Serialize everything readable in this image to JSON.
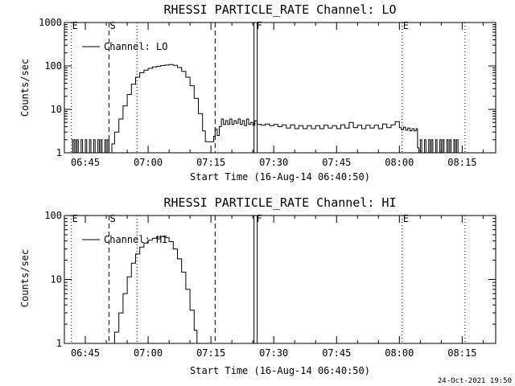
{
  "footer": {
    "timestamp": "24-Oct-2021 19:50"
  },
  "chart_data": [
    {
      "type": "line",
      "title": "RHESSI PARTICLE_RATE Channel: LO",
      "xlabel": "Start Time (16-Aug-14 06:40:50)",
      "ylabel": "Counts/sec",
      "yscale": "log",
      "ylim": [
        1,
        1000
      ],
      "yticks": [
        "1",
        "10",
        "100",
        "1000"
      ],
      "xticks": [
        "06:45",
        "07:00",
        "07:15",
        "07:30",
        "07:45",
        "08:00",
        "08:15"
      ],
      "legend": {
        "label": "Channel: LO",
        "placement": "top-left"
      },
      "markers": [
        {
          "label": "E",
          "time": "06:41:40",
          "style": "dotted"
        },
        {
          "label": "S",
          "time": "06:50:40",
          "style": "dashed"
        },
        {
          "label": "",
          "time": "06:57:20",
          "style": "dotted"
        },
        {
          "label": "",
          "time": "07:16:00",
          "style": "dashed"
        },
        {
          "label": "F",
          "time": "07:25:40",
          "style": "double"
        },
        {
          "label": "E",
          "time": "08:00:40",
          "style": "dotted"
        },
        {
          "label": "",
          "time": "08:15:40",
          "style": "dotted"
        }
      ],
      "series": [
        {
          "name": "Channel: LO",
          "points": [
            [
              "06:41:40",
              2
            ],
            [
              "06:42:00",
              1
            ],
            [
              "06:42:20",
              2
            ],
            [
              "06:42:40",
              1
            ],
            [
              "06:43:00",
              2
            ],
            [
              "06:43:20",
              1
            ],
            [
              "06:43:40",
              1
            ],
            [
              "06:44:00",
              2
            ],
            [
              "06:44:20",
              1
            ],
            [
              "06:44:40",
              1
            ],
            [
              "06:45:00",
              2
            ],
            [
              "06:45:20",
              1
            ],
            [
              "06:45:40",
              1
            ],
            [
              "06:46:00",
              2
            ],
            [
              "06:46:20",
              1
            ],
            [
              "06:46:40",
              1
            ],
            [
              "06:47:00",
              2
            ],
            [
              "06:47:20",
              1
            ],
            [
              "06:47:40",
              1
            ],
            [
              "06:48:00",
              2
            ],
            [
              "06:48:20",
              1
            ],
            [
              "06:48:40",
              2
            ],
            [
              "06:49:00",
              1
            ],
            [
              "06:49:20",
              1
            ],
            [
              "06:49:40",
              2
            ],
            [
              "06:50:00",
              1
            ],
            [
              "06:50:20",
              2
            ],
            [
              "06:50:40",
              1
            ],
            [
              "06:51:00",
              1
            ],
            [
              "06:51:20",
              1.6
            ],
            [
              "06:52:00",
              3
            ],
            [
              "06:53:00",
              6
            ],
            [
              "06:54:00",
              12
            ],
            [
              "06:55:00",
              22
            ],
            [
              "06:56:00",
              38
            ],
            [
              "06:57:00",
              55
            ],
            [
              "06:58:00",
              70
            ],
            [
              "06:59:00",
              80
            ],
            [
              "07:00:00",
              88
            ],
            [
              "07:01:00",
              95
            ],
            [
              "07:02:00",
              98
            ],
            [
              "07:03:00",
              102
            ],
            [
              "07:04:00",
              105
            ],
            [
              "07:05:00",
              108
            ],
            [
              "07:06:00",
              103
            ],
            [
              "07:07:00",
              92
            ],
            [
              "07:08:00",
              75
            ],
            [
              "07:09:00",
              55
            ],
            [
              "07:10:00",
              35
            ],
            [
              "07:11:00",
              18
            ],
            [
              "07:12:00",
              8
            ],
            [
              "07:13:00",
              3.2
            ],
            [
              "07:13:40",
              1.8
            ],
            [
              "07:14:20",
              1.8
            ],
            [
              "07:15:00",
              1.8
            ],
            [
              "07:15:40",
              2.4
            ],
            [
              "07:16:00",
              3.5
            ],
            [
              "07:16:30",
              2.5
            ],
            [
              "07:17:00",
              4
            ],
            [
              "07:17:30",
              6
            ],
            [
              "07:18:00",
              4.5
            ],
            [
              "07:18:30",
              5.5
            ],
            [
              "07:19:00",
              4.5
            ],
            [
              "07:19:30",
              6
            ],
            [
              "07:20:00",
              4.5
            ],
            [
              "07:20:30",
              5.5
            ],
            [
              "07:21:00",
              4.8
            ],
            [
              "07:21:30",
              6
            ],
            [
              "07:22:00",
              4.5
            ],
            [
              "07:22:30",
              5.5
            ],
            [
              "07:23:00",
              4.2
            ],
            [
              "07:23:30",
              6
            ],
            [
              "07:24:00",
              4.5
            ],
            [
              "07:24:30",
              5
            ],
            [
              "07:25:00",
              4.3
            ],
            [
              "07:25:30",
              5.5
            ],
            [
              "07:26:00",
              4.5
            ],
            [
              "07:27:00",
              4.3
            ],
            [
              "07:28:00",
              4.6
            ],
            [
              "07:29:00",
              4.2
            ],
            [
              "07:30:00",
              4.5
            ],
            [
              "07:31:00",
              4
            ],
            [
              "07:32:00",
              4.4
            ],
            [
              "07:33:00",
              3.7
            ],
            [
              "07:34:00",
              4.4
            ],
            [
              "07:35:00",
              3.6
            ],
            [
              "07:36:00",
              4.2
            ],
            [
              "07:37:00",
              3.6
            ],
            [
              "07:38:00",
              4.2
            ],
            [
              "07:39:00",
              3.6
            ],
            [
              "07:40:00",
              4.2
            ],
            [
              "07:41:00",
              3.6
            ],
            [
              "07:42:00",
              4.3
            ],
            [
              "07:43:00",
              3.7
            ],
            [
              "07:44:00",
              4.2
            ],
            [
              "07:45:00",
              3.6
            ],
            [
              "07:46:00",
              4.4
            ],
            [
              "07:47:00",
              3.7
            ],
            [
              "07:48:00",
              5
            ],
            [
              "07:49:00",
              3.8
            ],
            [
              "07:50:00",
              4.3
            ],
            [
              "07:51:00",
              3.6
            ],
            [
              "07:52:00",
              4.3
            ],
            [
              "07:53:00",
              3.7
            ],
            [
              "07:54:00",
              4.3
            ],
            [
              "07:55:00",
              3.6
            ],
            [
              "07:56:00",
              4.6
            ],
            [
              "07:57:00",
              3.8
            ],
            [
              "07:58:00",
              4.4
            ],
            [
              "07:59:00",
              5.2
            ],
            [
              "08:00:00",
              3.8
            ],
            [
              "08:00:30",
              3.4
            ],
            [
              "08:01:00",
              3.9
            ],
            [
              "08:01:30",
              3.3
            ],
            [
              "08:02:00",
              3.7
            ],
            [
              "08:02:30",
              3.2
            ],
            [
              "08:03:00",
              3.6
            ],
            [
              "08:03:30",
              3.2
            ],
            [
              "08:04:00",
              3.6
            ],
            [
              "08:04:20",
              1.3
            ],
            [
              "08:04:40",
              1
            ],
            [
              "08:05:00",
              2
            ],
            [
              "08:05:20",
              1
            ],
            [
              "08:05:40",
              1
            ],
            [
              "08:06:00",
              2
            ],
            [
              "08:06:20",
              1
            ],
            [
              "08:06:40",
              1
            ],
            [
              "08:07:00",
              2
            ],
            [
              "08:07:20",
              1
            ],
            [
              "08:07:40",
              2
            ],
            [
              "08:08:00",
              1
            ],
            [
              "08:08:20",
              1
            ],
            [
              "08:08:40",
              2
            ],
            [
              "08:09:00",
              1
            ],
            [
              "08:09:20",
              1
            ],
            [
              "08:09:40",
              2
            ],
            [
              "08:10:00",
              1
            ],
            [
              "08:10:20",
              2
            ],
            [
              "08:10:40",
              1
            ],
            [
              "08:11:00",
              1
            ],
            [
              "08:11:20",
              2
            ],
            [
              "08:11:40",
              1
            ],
            [
              "08:12:00",
              2
            ],
            [
              "08:12:20",
              1
            ],
            [
              "08:12:40",
              1
            ],
            [
              "08:13:00",
              2
            ],
            [
              "08:13:20",
              1
            ],
            [
              "08:13:40",
              2
            ],
            [
              "08:14:00",
              1
            ]
          ]
        }
      ]
    },
    {
      "type": "line",
      "title": "RHESSI PARTICLE_RATE Channel: HI",
      "xlabel": "Start Time (16-Aug-14 06:40:50)",
      "ylabel": "Counts/sec",
      "yscale": "log",
      "ylim": [
        1,
        100
      ],
      "yticks": [
        "1",
        "10",
        "100"
      ],
      "xticks": [
        "06:45",
        "07:00",
        "07:15",
        "07:30",
        "07:45",
        "08:00",
        "08:15"
      ],
      "legend": {
        "label": "Channel: HI",
        "placement": "top-left"
      },
      "markers": [
        {
          "label": "E",
          "time": "06:41:40",
          "style": "dotted"
        },
        {
          "label": "S",
          "time": "06:50:40",
          "style": "dashed"
        },
        {
          "label": "",
          "time": "06:57:20",
          "style": "dotted"
        },
        {
          "label": "",
          "time": "07:16:00",
          "style": "dashed"
        },
        {
          "label": "F",
          "time": "07:25:40",
          "style": "double"
        },
        {
          "label": "E",
          "time": "08:00:40",
          "style": "dotted"
        },
        {
          "label": "",
          "time": "08:15:40",
          "style": "dotted"
        }
      ],
      "series": [
        {
          "name": "Channel: HI",
          "points": [
            [
              "06:51:20",
              1
            ],
            [
              "06:52:00",
              1.5
            ],
            [
              "06:53:00",
              3
            ],
            [
              "06:54:00",
              6
            ],
            [
              "06:55:00",
              11
            ],
            [
              "06:56:00",
              18
            ],
            [
              "06:57:00",
              25
            ],
            [
              "06:58:00",
              32
            ],
            [
              "06:59:00",
              37
            ],
            [
              "07:00:00",
              41
            ],
            [
              "07:01:00",
              44
            ],
            [
              "07:02:00",
              46
            ],
            [
              "07:03:00",
              47
            ],
            [
              "07:04:00",
              45
            ],
            [
              "07:05:00",
              39
            ],
            [
              "07:06:00",
              30
            ],
            [
              "07:07:00",
              21
            ],
            [
              "07:08:00",
              13
            ],
            [
              "07:09:00",
              7
            ],
            [
              "07:10:00",
              3.3
            ],
            [
              "07:11:00",
              1.6
            ],
            [
              "07:11:40",
              1
            ]
          ]
        }
      ]
    }
  ]
}
